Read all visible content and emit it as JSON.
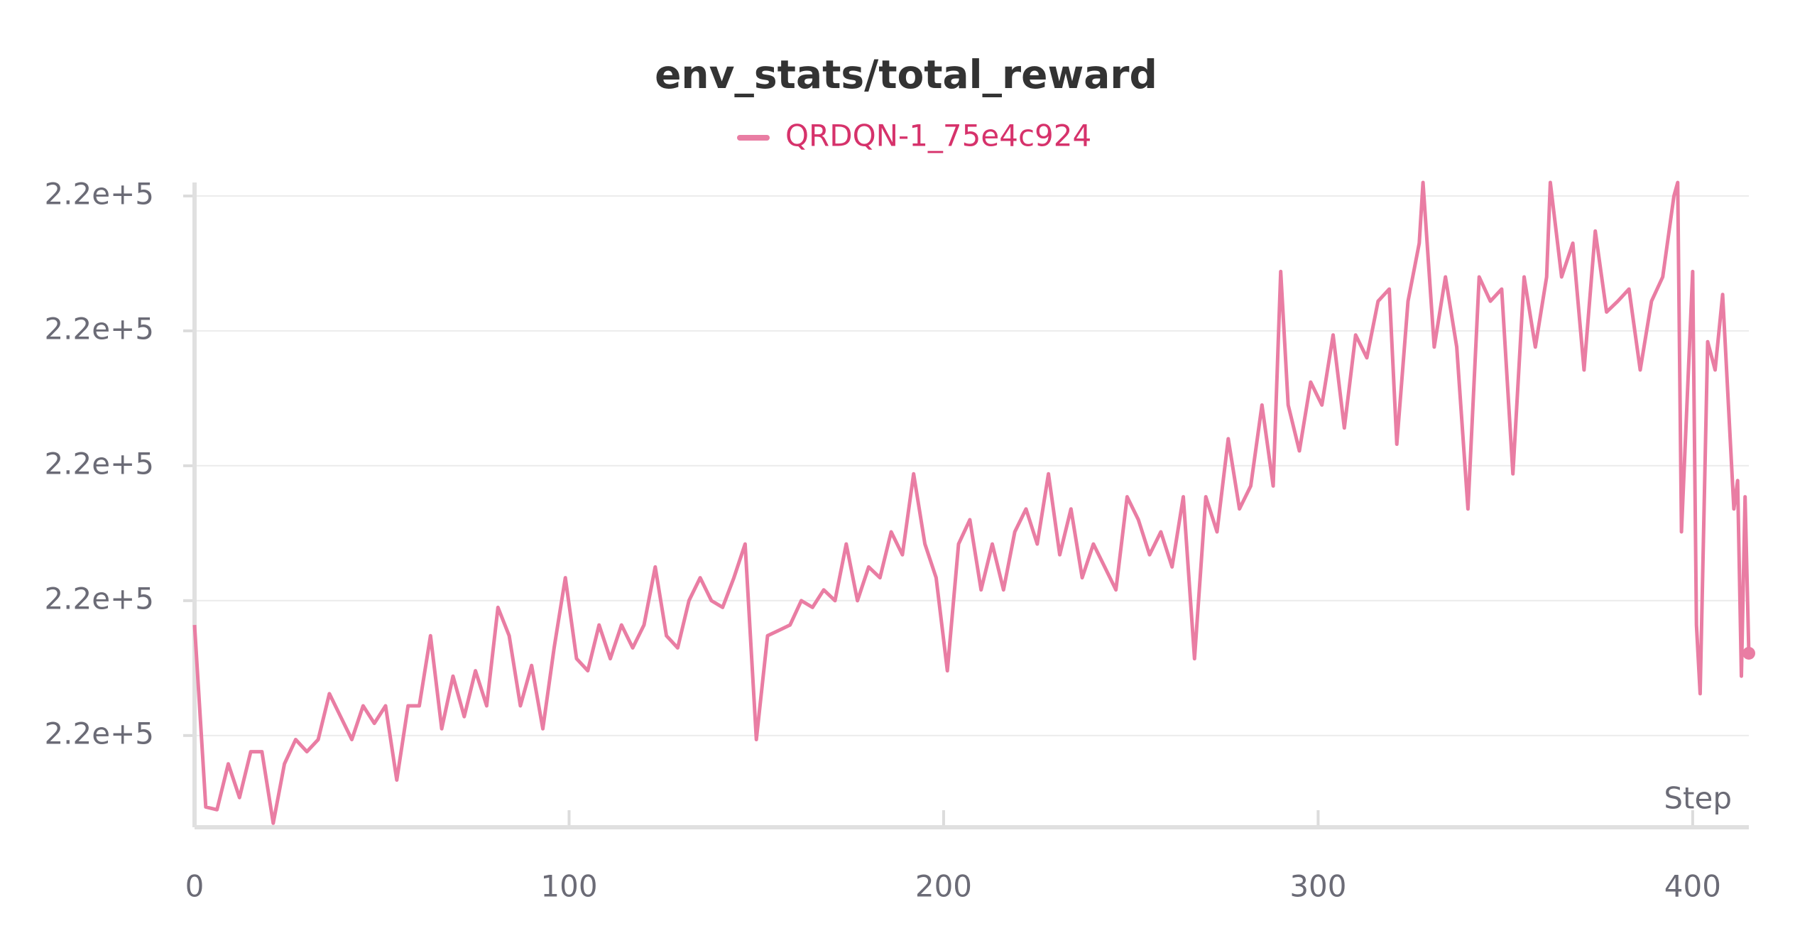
{
  "chart_data": {
    "type": "line",
    "title": "env_stats/total_reward",
    "x_label": "Step",
    "series": [
      {
        "name": "QRDQN-1_75e4c924",
        "color": "#e97da3",
        "label_color": "#d6326b",
        "x": [
          0,
          3,
          6,
          9,
          12,
          15,
          18,
          21,
          24,
          27,
          30,
          33,
          36,
          39,
          42,
          45,
          48,
          51,
          54,
          57,
          60,
          63,
          66,
          69,
          72,
          75,
          78,
          81,
          84,
          87,
          90,
          93,
          96,
          99,
          102,
          105,
          108,
          111,
          114,
          117,
          120,
          123,
          126,
          129,
          132,
          135,
          138,
          141,
          144,
          147,
          150,
          153,
          156,
          159,
          162,
          165,
          168,
          171,
          174,
          177,
          180,
          183,
          186,
          189,
          192,
          195,
          198,
          201,
          204,
          207,
          210,
          213,
          216,
          219,
          222,
          225,
          228,
          231,
          234,
          237,
          240,
          243,
          246,
          249,
          252,
          255,
          258,
          261,
          264,
          267,
          270,
          273,
          276,
          279,
          282,
          285,
          288,
          290,
          292,
          295,
          298,
          301,
          304,
          307,
          310,
          313,
          316,
          319,
          321,
          324,
          327,
          328,
          331,
          334,
          337,
          340,
          343,
          346,
          349,
          352,
          355,
          358,
          361,
          362,
          365,
          368,
          371,
          374,
          377,
          380,
          383,
          386,
          389,
          392,
          395,
          396,
          397,
          400,
          401,
          402,
          404,
          406,
          408,
          411,
          412,
          413,
          414,
          415
        ],
        "values": [
          219988.2,
          219974.7,
          219974.5,
          219977.9,
          219975.4,
          219978.8,
          219978.8,
          219973.5,
          219977.9,
          219979.7,
          219978.8,
          219979.7,
          219983.1,
          219981.4,
          219979.7,
          219982.2,
          219980.9,
          219982.2,
          219976.7,
          219982.2,
          219982.2,
          219987.4,
          219980.5,
          219984.4,
          219981.4,
          219984.8,
          219982.2,
          219989.5,
          219987.4,
          219982.2,
          219985.2,
          219980.5,
          219986.5,
          219991.7,
          219985.7,
          219984.8,
          219988.2,
          219985.7,
          219988.2,
          219986.5,
          219988.2,
          219992.5,
          219987.4,
          219986.5,
          219990.0,
          219991.7,
          219990.0,
          219989.5,
          219991.7,
          219994.2,
          219979.7,
          219987.4,
          219987.8,
          219988.2,
          219990.0,
          219989.5,
          219990.8,
          219990.0,
          219994.2,
          219990.0,
          219992.5,
          219991.7,
          219995.1,
          219993.4,
          219999.4,
          219994.2,
          219991.7,
          219984.8,
          219994.2,
          219996.0,
          219990.8,
          219994.2,
          219990.8,
          219995.1,
          219996.8,
          219994.2,
          219999.4,
          219993.4,
          219996.8,
          219991.7,
          219994.2,
          219992.5,
          219990.8,
          219997.7,
          219996.0,
          219993.4,
          219995.1,
          219992.5,
          219997.7,
          219985.7,
          219997.7,
          219995.1,
          220002.0,
          219996.8,
          219998.5,
          220004.5,
          219998.5,
          220014.4,
          220004.5,
          220001.1,
          220006.2,
          220004.5,
          220009.7,
          220002.8,
          220009.7,
          220008.0,
          220012.2,
          220013.1,
          220001.6,
          220012.2,
          220016.5,
          220021.0,
          220008.8,
          220014.0,
          220008.8,
          219996.8,
          220014.0,
          220012.2,
          220013.1,
          219999.4,
          220014.0,
          220008.8,
          220014.0,
          220021.0,
          220014.0,
          220016.5,
          220007.1,
          220017.4,
          220011.4,
          220012.2,
          220013.1,
          220007.1,
          220012.2,
          220014.0,
          220020.0,
          220021.0,
          219995.1,
          220014.4,
          219988.2,
          219983.1,
          220009.2,
          220007.1,
          220012.7,
          219996.8,
          219998.9,
          219984.4,
          219997.7,
          219986.1
        ]
      }
    ],
    "xlim": [
      0,
      415
    ],
    "xticks": [
      0,
      100,
      200,
      300,
      400
    ],
    "ylim": [
      219973.2,
      220021
    ],
    "yticks": [
      {
        "value": 219980,
        "label": "2.2e+5"
      },
      {
        "value": 219990,
        "label": "2.2e+5"
      },
      {
        "value": 220000,
        "label": "2.2e+5"
      },
      {
        "value": 220010,
        "label": "2.2e+5"
      },
      {
        "value": 220020,
        "label": "2.2e+5"
      }
    ],
    "grid": true
  }
}
